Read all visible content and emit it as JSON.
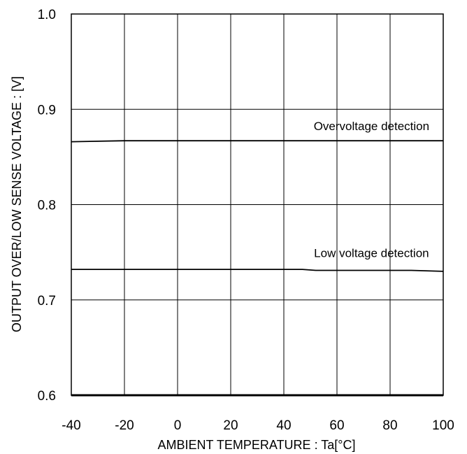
{
  "chart_data": {
    "type": "line",
    "title": "",
    "xlabel": "AMBIENT TEMPERATURE : Ta[°C]",
    "ylabel": "OUTPUT OVER/LOW SENSE VOLTAGE : [V]",
    "xlim": [
      -40,
      100
    ],
    "ylim": [
      0.6,
      1.0
    ],
    "x_ticks": [
      -40,
      -20,
      0,
      20,
      40,
      60,
      80,
      100
    ],
    "x_tick_labels": [
      "-40",
      "-20",
      "0",
      "20",
      "40",
      "60",
      "80",
      "100"
    ],
    "y_ticks": [
      0.6,
      0.7,
      0.8,
      0.9,
      1.0
    ],
    "y_tick_labels": [
      "0.6",
      "0.7",
      "0.8",
      "0.9",
      "1.0"
    ],
    "grid": true,
    "series": [
      {
        "name": "Overvoltage detection",
        "x": [
          -40,
          -20,
          0,
          20,
          40,
          60,
          80,
          100
        ],
        "y": [
          0.866,
          0.867,
          0.867,
          0.867,
          0.867,
          0.867,
          0.867,
          0.867
        ]
      },
      {
        "name": "Low voltage detection",
        "x": [
          -40,
          -20,
          0,
          20,
          40,
          47,
          52,
          60,
          80,
          88,
          100
        ],
        "y": [
          0.732,
          0.732,
          0.732,
          0.732,
          0.732,
          0.732,
          0.731,
          0.731,
          0.731,
          0.731,
          0.73
        ]
      }
    ],
    "annotations": [
      {
        "text": "Overvoltage detection",
        "x": 73,
        "y": 0.878
      },
      {
        "text": "Low voltage detection",
        "x": 73,
        "y": 0.745
      }
    ]
  }
}
